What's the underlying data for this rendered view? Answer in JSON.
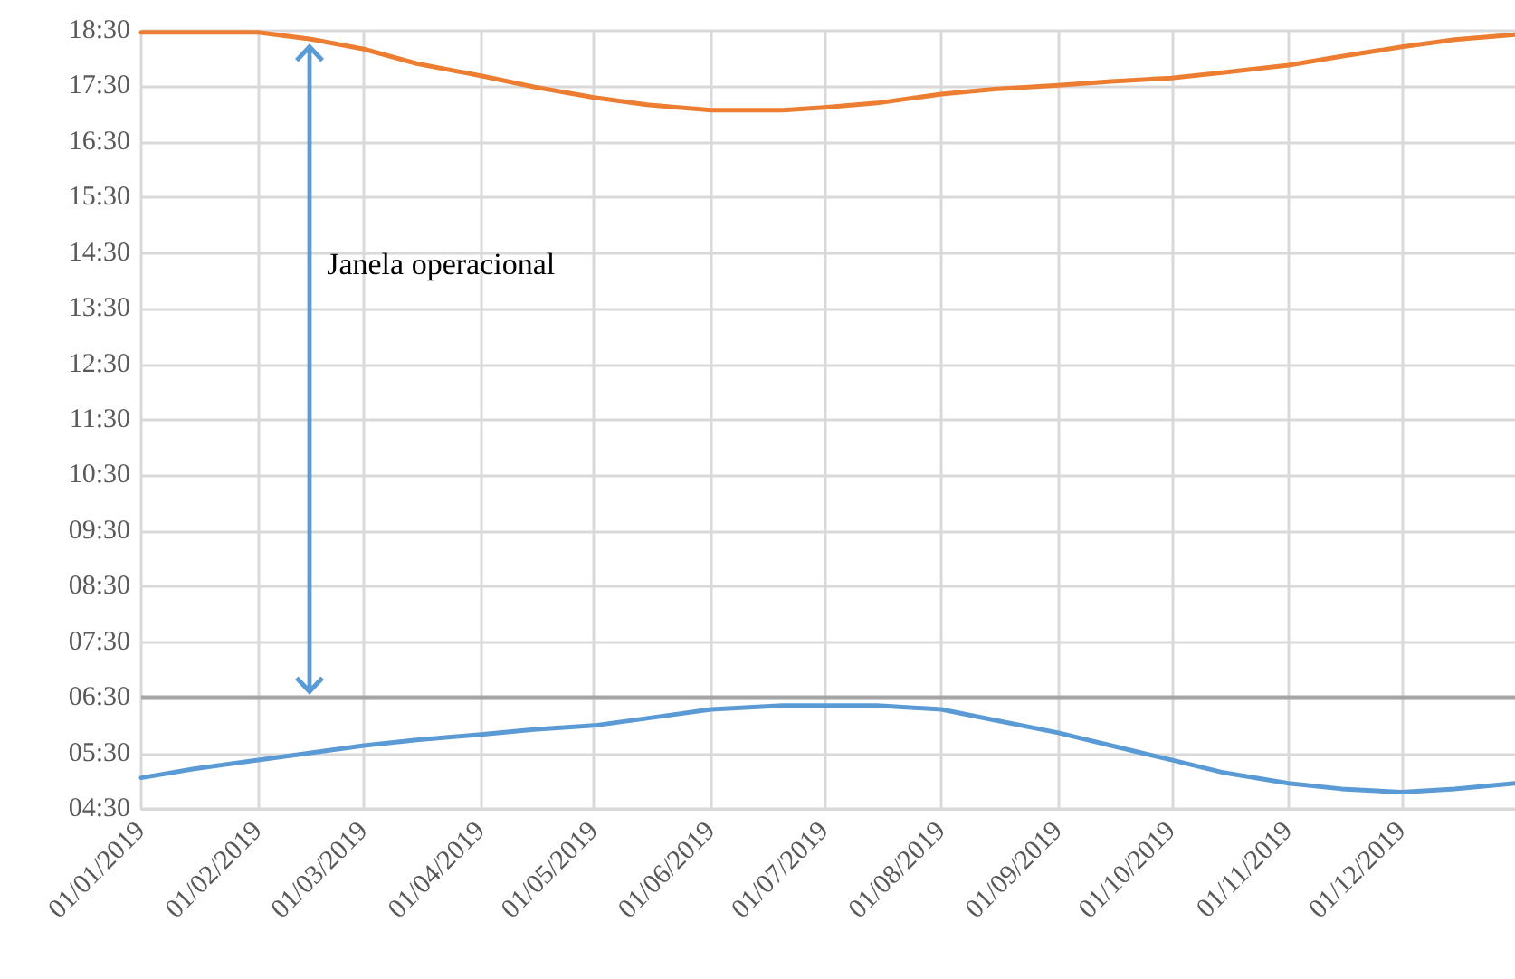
{
  "chart_data": {
    "type": "line",
    "x": [
      "2019-01-01",
      "2019-01-15",
      "2019-02-01",
      "2019-02-15",
      "2019-03-01",
      "2019-03-15",
      "2019-04-01",
      "2019-04-15",
      "2019-05-01",
      "2019-05-15",
      "2019-06-01",
      "2019-06-20",
      "2019-07-01",
      "2019-07-15",
      "2019-08-01",
      "2019-08-15",
      "2019-09-01",
      "2019-09-15",
      "2019-10-01",
      "2019-10-15",
      "2019-11-01",
      "2019-11-15",
      "2019-12-01",
      "2019-12-15",
      "2019-12-31"
    ],
    "series": [
      {
        "color": "#5b9bd5",
        "values": [
          5.06,
          5.22,
          5.38,
          5.51,
          5.64,
          5.74,
          5.84,
          5.93,
          6.0,
          6.13,
          6.29,
          6.36,
          6.36,
          6.36,
          6.29,
          6.1,
          5.87,
          5.64,
          5.38,
          5.15,
          4.96,
          4.86,
          4.8,
          4.86,
          4.96
        ]
      },
      {
        "color": "#ed7d31",
        "values": [
          18.47,
          18.47,
          18.47,
          18.35,
          18.17,
          17.91,
          17.69,
          17.49,
          17.3,
          17.17,
          17.07,
          17.07,
          17.12,
          17.2,
          17.36,
          17.45,
          17.52,
          17.59,
          17.65,
          17.75,
          17.88,
          18.04,
          18.21,
          18.34,
          18.43
        ]
      }
    ],
    "xlim": [
      "2019-01-01",
      "2019-12-31"
    ],
    "xticks": [
      {
        "value": "2019-01-01",
        "label": "01/01/2019"
      },
      {
        "value": "2019-02-01",
        "label": "01/02/2019"
      },
      {
        "value": "2019-03-01",
        "label": "01/03/2019"
      },
      {
        "value": "2019-04-01",
        "label": "01/04/2019"
      },
      {
        "value": "2019-05-01",
        "label": "01/05/2019"
      },
      {
        "value": "2019-06-01",
        "label": "01/06/2019"
      },
      {
        "value": "2019-07-01",
        "label": "01/07/2019"
      },
      {
        "value": "2019-08-01",
        "label": "01/08/2019"
      },
      {
        "value": "2019-09-01",
        "label": "01/09/2019"
      },
      {
        "value": "2019-10-01",
        "label": "01/10/2019"
      },
      {
        "value": "2019-11-01",
        "label": "01/11/2019"
      },
      {
        "value": "2019-12-01",
        "label": "01/12/2019"
      }
    ],
    "ylim": [
      4.5,
      18.5
    ],
    "yticks": [
      {
        "value": 4.5,
        "label": "04:30"
      },
      {
        "value": 5.5,
        "label": "05:30"
      },
      {
        "value": 6.5,
        "label": "06:30"
      },
      {
        "value": 7.5,
        "label": "07:30"
      },
      {
        "value": 8.5,
        "label": "08:30"
      },
      {
        "value": 9.5,
        "label": "09:30"
      },
      {
        "value": 10.5,
        "label": "10:30"
      },
      {
        "value": 11.5,
        "label": "11:30"
      },
      {
        "value": 12.5,
        "label": "12:30"
      },
      {
        "value": 13.5,
        "label": "13:30"
      },
      {
        "value": 14.5,
        "label": "14:30"
      },
      {
        "value": 15.5,
        "label": "15:30"
      },
      {
        "value": 16.5,
        "label": "16:30"
      },
      {
        "value": 17.5,
        "label": "17:30"
      },
      {
        "value": 18.5,
        "label": "18:30"
      }
    ],
    "ref_lines": [
      {
        "axis": "y",
        "value": 6.5,
        "color": "#a5a5a5"
      }
    ],
    "annotations": [
      "Janela operacional"
    ],
    "grid": true,
    "marker": "none",
    "line_style": "solid"
  }
}
